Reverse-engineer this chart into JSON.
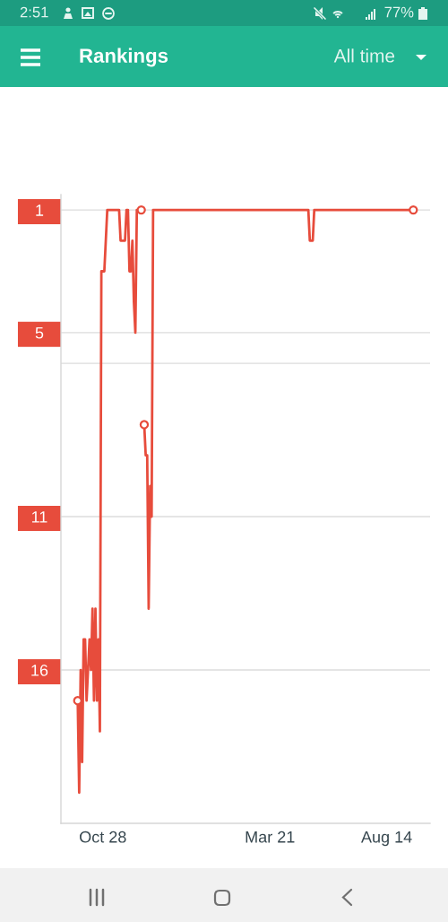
{
  "chart_data": {
    "type": "line",
    "title": "Rankings",
    "subtitle": "All time",
    "annotations": [
      "2:51",
      "77%"
    ],
    "categories": [
      null,
      null,
      null,
      null,
      null,
      null,
      null,
      null,
      null,
      null,
      null,
      null,
      null,
      null,
      null,
      null,
      null,
      "Oct 28",
      null,
      null,
      null,
      null,
      null,
      null,
      null,
      null,
      null,
      null,
      null,
      null,
      null,
      null,
      null,
      null,
      null,
      null,
      null,
      null,
      null,
      null,
      null,
      null,
      null,
      null,
      null,
      null,
      null,
      null,
      null,
      null,
      null,
      null,
      null,
      null,
      null,
      null,
      null,
      null,
      null,
      null,
      null,
      null,
      null,
      null,
      null,
      null,
      null,
      null,
      null,
      null,
      null,
      null,
      null,
      null,
      null,
      null,
      null,
      null,
      null,
      null,
      null,
      null,
      null,
      null,
      null,
      null,
      null,
      null,
      null,
      null,
      null,
      null,
      null,
      null,
      null,
      null,
      null,
      null,
      null,
      null,
      null,
      null,
      null,
      null,
      null,
      null,
      null,
      null,
      null,
      null,
      null,
      null,
      null,
      null,
      null,
      null,
      null,
      null,
      null,
      null,
      null,
      null,
      null,
      null,
      null,
      null,
      null,
      null,
      null,
      null,
      "Mar 21",
      null,
      null,
      null,
      null,
      null,
      null,
      null,
      null,
      null,
      null,
      null,
      null,
      null,
      null,
      null,
      null,
      null,
      null,
      null,
      null,
      null,
      null,
      null,
      null,
      null,
      null,
      null,
      null,
      null,
      null,
      null,
      null,
      null,
      null,
      null,
      null,
      null,
      null,
      null,
      null,
      null,
      null,
      null,
      null,
      null,
      null,
      null,
      null,
      null,
      null,
      null,
      null,
      null,
      null,
      null,
      null,
      null,
      null,
      null,
      null,
      null,
      null,
      null,
      null,
      null,
      null,
      null,
      null,
      null,
      null,
      null,
      null,
      null,
      null,
      null,
      null,
      null,
      null,
      "Aug 14",
      null,
      null,
      null,
      null,
      null,
      null,
      null,
      null,
      null,
      null,
      null,
      null,
      null,
      null,
      null,
      null,
      null,
      null
    ],
    "ylim": [
      21,
      0.5
    ],
    "yticks": [
      1,
      5,
      {
        "value": 6,
        "label": null
      },
      11,
      16
    ],
    "grid": "y",
    "series": [
      {
        "color": "#e74c3c",
        "values": [
          17,
          20,
          16,
          19,
          15,
          15,
          17,
          16,
          15,
          16,
          14,
          17,
          14,
          17,
          15,
          18,
          3,
          3,
          3,
          2,
          1,
          1,
          1,
          1,
          1,
          1,
          1,
          1,
          1,
          2,
          2,
          2,
          2,
          1,
          1,
          3,
          3,
          2,
          4,
          5,
          1,
          1,
          1,
          1,
          null,
          8,
          9,
          9,
          14,
          10,
          11,
          1,
          1,
          1,
          1,
          1,
          1,
          1,
          1,
          1,
          1,
          1,
          1,
          1,
          1,
          1,
          1,
          1,
          1,
          1,
          1,
          1,
          1,
          1,
          1,
          1,
          1,
          1,
          1,
          1,
          1,
          1,
          1,
          1,
          1,
          1,
          1,
          1,
          1,
          1,
          1,
          1,
          1,
          1,
          1,
          1,
          1,
          1,
          1,
          1,
          1,
          1,
          1,
          1,
          1,
          1,
          1,
          1,
          1,
          1,
          1,
          1,
          1,
          1,
          1,
          1,
          1,
          1,
          1,
          1,
          1,
          1,
          1,
          1,
          1,
          1,
          1,
          1,
          1,
          1,
          1,
          1,
          1,
          1,
          1,
          1,
          1,
          1,
          1,
          1,
          1,
          1,
          1,
          1,
          1,
          1,
          1,
          1,
          1,
          1,
          1,
          1,
          1,
          1,
          1,
          1,
          1,
          2,
          2,
          2,
          1,
          1,
          1,
          1,
          1,
          1,
          1,
          1,
          1,
          1,
          1,
          1,
          1,
          1,
          1,
          1,
          1,
          1,
          1,
          1,
          1,
          1,
          1,
          1,
          1,
          1,
          1,
          1,
          1,
          1,
          1,
          1,
          1,
          1,
          1,
          1,
          1,
          1,
          1,
          1,
          1,
          1,
          1,
          1,
          1,
          1,
          1,
          1,
          1,
          1,
          1,
          1,
          1,
          1,
          1,
          1,
          1,
          1,
          1,
          1,
          1,
          1,
          1,
          1,
          1,
          1,
          1,
          1
        ]
      },
      {
        "type": "scatter",
        "marker": "circle",
        "color": "#e74c3c",
        "values": [
          17,
          null,
          null,
          null,
          null,
          null,
          null,
          null,
          null,
          null,
          null,
          null,
          null,
          null,
          null,
          null,
          null,
          null,
          null,
          null,
          null,
          null,
          null,
          null,
          null,
          null,
          null,
          null,
          null,
          null,
          null,
          null,
          null,
          null,
          null,
          null,
          null,
          null,
          null,
          null,
          null,
          null,
          null,
          1,
          null,
          8,
          null,
          null,
          null,
          null,
          null,
          null,
          null,
          null,
          null,
          null,
          null,
          null,
          null,
          null,
          null,
          null,
          null,
          null,
          null,
          null,
          null,
          null,
          null,
          null,
          null,
          null,
          null,
          null,
          null,
          null,
          null,
          null,
          null,
          null,
          null,
          null,
          null,
          null,
          null,
          null,
          null,
          null,
          null,
          null,
          null,
          null,
          null,
          null,
          null,
          null,
          null,
          null,
          null,
          null,
          null,
          null,
          null,
          null,
          null,
          null,
          null,
          null,
          null,
          null,
          null,
          null,
          null,
          null,
          null,
          null,
          null,
          null,
          null,
          null,
          null,
          null,
          null,
          null,
          null,
          null,
          null,
          null,
          null,
          null,
          null,
          null,
          null,
          null,
          null,
          null,
          null,
          null,
          null,
          null,
          null,
          null,
          null,
          null,
          null,
          null,
          null,
          null,
          null,
          null,
          null,
          null,
          null,
          null,
          null,
          null,
          null,
          null,
          null,
          null,
          null,
          null,
          null,
          null,
          null,
          null,
          null,
          null,
          null,
          null,
          null,
          null,
          null,
          null,
          null,
          null,
          null,
          null,
          null,
          null,
          null,
          null,
          null,
          null,
          null,
          null,
          null,
          null,
          null,
          null,
          null,
          null,
          null,
          null,
          null,
          null,
          null,
          null,
          null,
          null,
          null,
          null,
          null,
          null,
          null,
          null,
          null,
          null,
          null,
          null,
          null,
          null,
          null,
          null,
          null,
          null,
          null,
          null,
          null,
          null,
          null,
          null,
          null,
          null,
          null,
          null,
          null,
          1
        ]
      }
    ]
  }
}
